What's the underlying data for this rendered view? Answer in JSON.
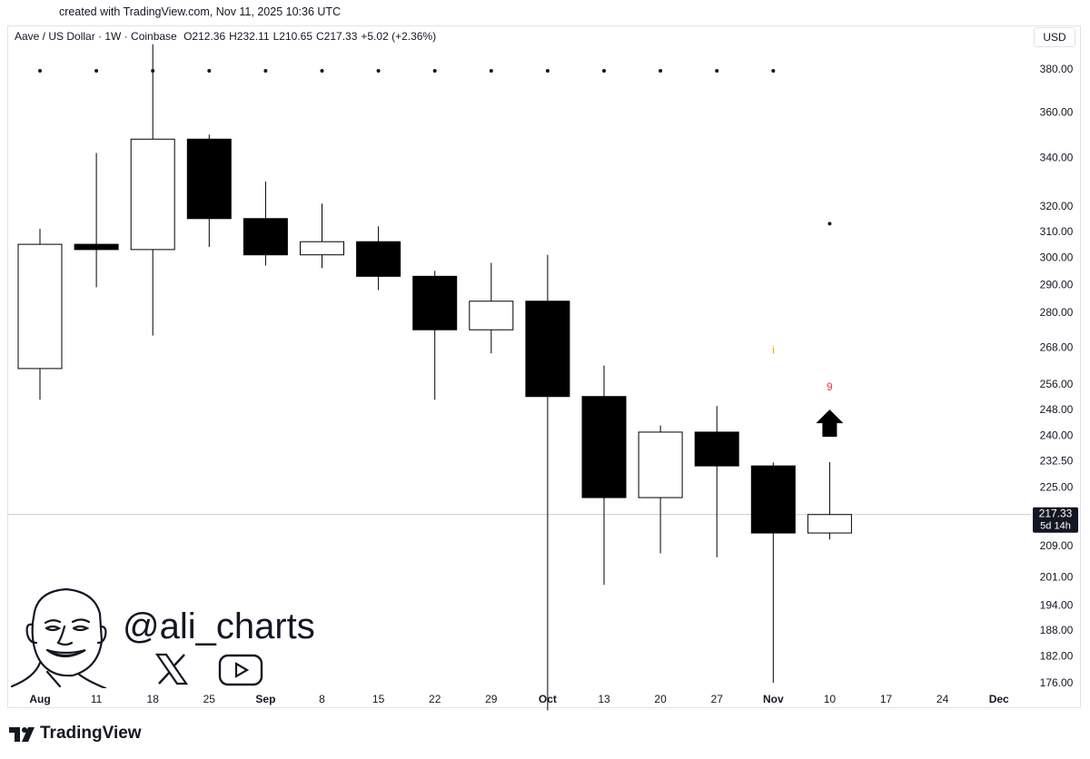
{
  "header": {
    "credit": "created with TradingView.com, Nov 11, 2025 10:36 UTC",
    "symbol": "Aave / US Dollar · 1W · Coinbase",
    "open": "O212.36",
    "high": "H232.11",
    "low": "L210.65",
    "close": "C217.33",
    "change": "+5.02 (+2.36%)",
    "currency": "USD"
  },
  "branding": {
    "handle": "@ali_charts",
    "tradingview": "TradingView"
  },
  "chart_data": {
    "type": "candlestick",
    "x_tick_labels": [
      "Aug",
      "11",
      "18",
      "25",
      "Sep",
      "8",
      "15",
      "22",
      "29",
      "Oct",
      "13",
      "20",
      "27",
      "Nov",
      "10",
      "17",
      "24",
      "Dec"
    ],
    "y_tick_labels": [
      "380.00",
      "360.00",
      "340.00",
      "320.00",
      "310.00",
      "300.00",
      "290.00",
      "280.00",
      "268.00",
      "256.00",
      "248.00",
      "240.00",
      "232.50",
      "225.00",
      "209.00",
      "201.00",
      "194.00",
      "188.00",
      "182.00",
      "176.00"
    ],
    "y_scale": "log",
    "candles": [
      {
        "x": "Aug",
        "open": 261,
        "high": 311,
        "low": 251,
        "close": 305
      },
      {
        "x": "11",
        "open": 305,
        "high": 342,
        "low": 289,
        "close": 303
      },
      {
        "x": "18",
        "open": 303,
        "high": 392,
        "low": 272,
        "close": 348
      },
      {
        "x": "25",
        "open": 348,
        "high": 350,
        "low": 304,
        "close": 315
      },
      {
        "x": "Sep",
        "open": 315,
        "high": 330,
        "low": 297,
        "close": 301
      },
      {
        "x": "8",
        "open": 301,
        "high": 321,
        "low": 296,
        "close": 306
      },
      {
        "x": "15",
        "open": 306,
        "high": 312,
        "low": 288,
        "close": 293
      },
      {
        "x": "22",
        "open": 293,
        "high": 295,
        "low": 251,
        "close": 274
      },
      {
        "x": "29",
        "open": 274,
        "high": 298,
        "low": 266,
        "close": 284
      },
      {
        "x": "Oct",
        "open": 284,
        "high": 301,
        "low": 170,
        "close": 252
      },
      {
        "x": "13",
        "open": 252,
        "high": 262,
        "low": 199,
        "close": 222
      },
      {
        "x": "20",
        "open": 222,
        "high": 243,
        "low": 207,
        "close": 241
      },
      {
        "x": "27",
        "open": 241,
        "high": 249,
        "low": 206,
        "close": 231
      },
      {
        "x": "Nov",
        "open": 231,
        "high": 232,
        "low": 176,
        "close": 212.36
      },
      {
        "x": "10",
        "open": 212.36,
        "high": 232.11,
        "low": 210.65,
        "close": 217.33
      }
    ],
    "last_price": {
      "label": "217.33",
      "countdown": "5d 14h",
      "value": 217.33
    },
    "annotations": {
      "top_dots": [
        "Aug",
        "11",
        "18",
        "25",
        "Sep",
        "8",
        "15",
        "22",
        "29",
        "Oct",
        "13",
        "20",
        "27",
        "Nov"
      ],
      "dot_10_price": 313,
      "nov_marker": {
        "x": "Nov",
        "text": "i",
        "price": 266
      },
      "count_label": {
        "x": "10",
        "text": "9",
        "price": 254
      },
      "arrow": {
        "x": "10",
        "direction": "up",
        "price": 244
      }
    },
    "colors": {
      "candle_up_fill": "#ffffff",
      "candle_down_fill": "#000000",
      "outline": "#000000",
      "count_red": "#f23645",
      "marker_orange": "#ff9800"
    }
  }
}
